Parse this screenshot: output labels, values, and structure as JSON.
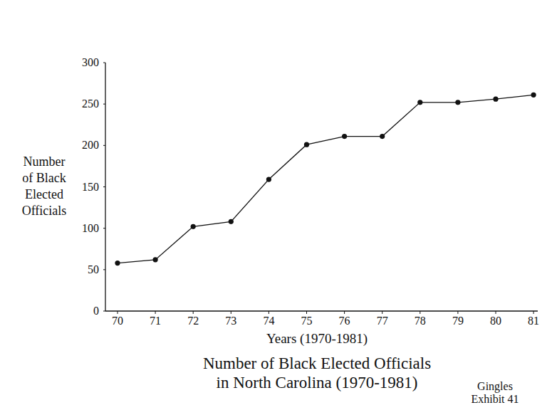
{
  "chart_data": {
    "type": "line",
    "title": "Number of Black Elected Officials\nin North Carolina (1970-1981)",
    "x_label": "Years (1970-1981)",
    "y_label": "Number\nof Black\nElected\nOfficials",
    "annotation": "Gingles\nExhibit 41",
    "categories": [
      "70",
      "71",
      "72",
      "73",
      "74",
      "75",
      "76",
      "77",
      "78",
      "79",
      "80",
      "81"
    ],
    "values": [
      58,
      62,
      102,
      108,
      159,
      201,
      211,
      211,
      252,
      252,
      256,
      261
    ],
    "color": "#111111",
    "marker": "circle",
    "line_style": "solid",
    "ylim": [
      0,
      300
    ],
    "yticks": [
      0,
      50,
      100,
      150,
      200,
      250,
      300
    ],
    "grid": false
  }
}
